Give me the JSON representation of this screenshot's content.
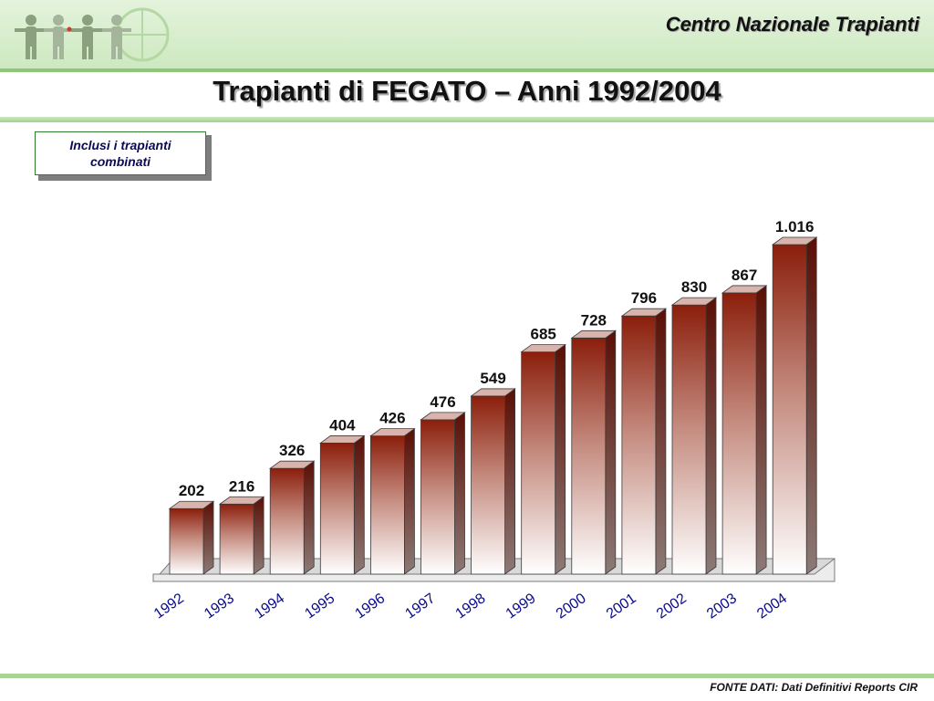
{
  "header": {
    "org_name": "Centro Nazionale Trapianti",
    "logo_icon": "human-figures-logo-icon"
  },
  "title": "Trapianti di FEGATO – Anni 1992/2004",
  "note": "Inclusi i trapianti combinati",
  "footer": "FONTE DATI: Dati Definitivi Reports CIR",
  "colors": {
    "header_bg": "#cde9c0",
    "bar_top": "#8b1e0b",
    "bar_bottom": "#ffffff",
    "axis_label": "#0a0a8c"
  },
  "chart_data": {
    "type": "bar",
    "categories": [
      "1992",
      "1993",
      "1994",
      "1995",
      "1996",
      "1997",
      "1998",
      "1999",
      "2000",
      "2001",
      "2002",
      "2003",
      "2004"
    ],
    "values": [
      202,
      216,
      326,
      404,
      426,
      476,
      549,
      685,
      728,
      796,
      830,
      867,
      1016
    ],
    "data_labels": [
      "202",
      "216",
      "326",
      "404",
      "426",
      "476",
      "549",
      "685",
      "728",
      "796",
      "830",
      "867",
      "1.016"
    ],
    "title": "",
    "xlabel": "",
    "ylabel": "",
    "ylim": [
      0,
      1016
    ],
    "grid": false,
    "legend": "none",
    "style": "3d-gradient"
  }
}
